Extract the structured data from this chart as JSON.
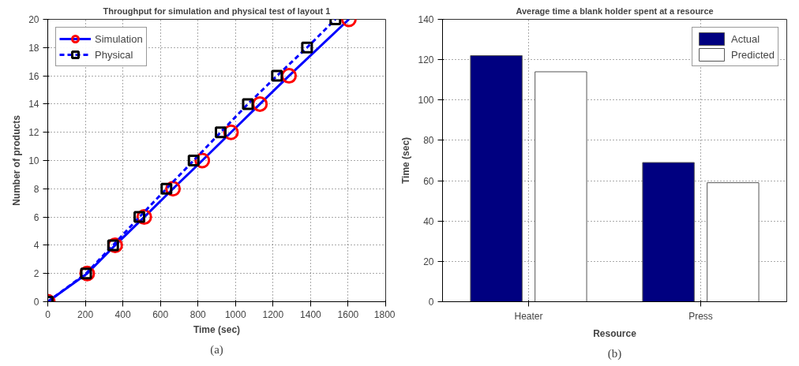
{
  "chart_data": [
    {
      "type": "line",
      "title": "Throughput for simulation and physical test of layout 1",
      "xlabel": "Time (sec)",
      "ylabel": "Number of products",
      "xlim": [
        0,
        1800
      ],
      "xticks": [
        0,
        200,
        400,
        600,
        800,
        1000,
        1200,
        1400,
        1600,
        1800
      ],
      "ylim": [
        0,
        20
      ],
      "yticks": [
        0,
        2,
        4,
        6,
        8,
        10,
        12,
        14,
        16,
        18,
        20
      ],
      "grid": true,
      "legend": "top left",
      "annotations": [
        "(a)"
      ],
      "series": [
        {
          "name": "Simulation",
          "color": "#0000ff",
          "marker": "circle",
          "colors": [
            "#ff0000",
            "#ff0000",
            "#ff0000",
            "#ff0000",
            "#ff0000",
            "#ff0000",
            "#ff0000",
            "#ff0000",
            "#ff0000",
            "#ff0000"
          ],
          "line_style": "solid",
          "x": [
            0,
            210,
            359,
            514,
            667,
            823,
            976,
            1130,
            1285,
            1604
          ],
          "values": [
            0,
            2,
            4,
            6,
            8,
            10,
            12,
            14,
            16,
            20
          ]
        },
        {
          "name": "Physical",
          "color": "#0000ff",
          "marker": "square",
          "colors": [
            "#000000",
            "#000000",
            "#000000",
            "#000000",
            "#000000",
            "#000000",
            "#000000",
            "#000000",
            "#000000",
            "#000000",
            "#000000"
          ],
          "line_style": "dashed",
          "x": [
            0,
            204,
            348,
            488,
            632,
            777,
            921,
            1066,
            1221,
            1381,
            1532
          ],
          "values": [
            0,
            2,
            4,
            6,
            8,
            10,
            12,
            14,
            16,
            18,
            20
          ]
        }
      ]
    },
    {
      "type": "bar",
      "title": "Average time a blank holder spent at a resource",
      "xlabel": "Resource",
      "ylabel": "Time (sec)",
      "categories": [
        "Heater",
        "Press"
      ],
      "ylim": [
        0,
        140
      ],
      "yticks": [
        0,
        20,
        40,
        60,
        80,
        100,
        120,
        140
      ],
      "grid": true,
      "legend": "top right",
      "annotations": [
        "(b)"
      ],
      "series": [
        {
          "name": "Actual",
          "color": "#000080",
          "values": [
            122,
            69
          ]
        },
        {
          "name": "Predicted",
          "color": "#ffffff",
          "values": [
            114,
            59
          ]
        }
      ]
    }
  ]
}
